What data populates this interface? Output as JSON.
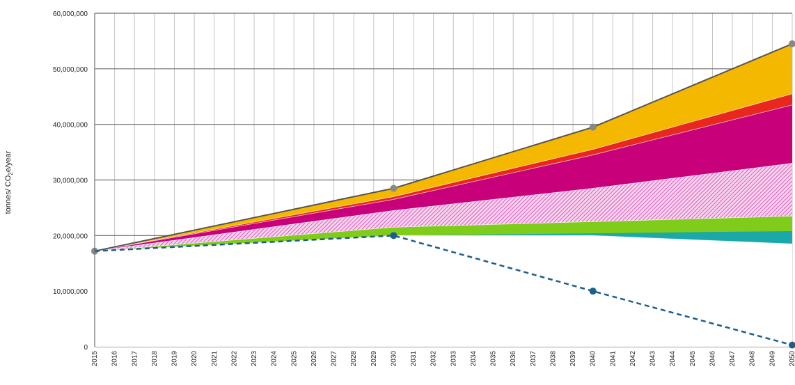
{
  "chart_data": {
    "type": "area",
    "title": "",
    "xlabel": "",
    "ylabel_parts": [
      "tonnes/ CO",
      "2",
      "e/year"
    ],
    "ylim": [
      0,
      60000000
    ],
    "yticks": [
      0,
      10000000,
      20000000,
      30000000,
      40000000,
      50000000,
      60000000
    ],
    "ytick_labels": [
      "0",
      "10,000,000",
      "20,000,000",
      "30,000,000",
      "40,000,000",
      "50,000,000",
      "60,000,000"
    ],
    "x": [
      2015,
      2016,
      2017,
      2018,
      2019,
      2020,
      2021,
      2022,
      2023,
      2024,
      2025,
      2026,
      2027,
      2028,
      2029,
      2030,
      2031,
      2032,
      2033,
      2034,
      2035,
      2036,
      2037,
      2038,
      2039,
      2040,
      2041,
      2042,
      2043,
      2044,
      2045,
      2046,
      2047,
      2048,
      2049,
      2050
    ],
    "grid": true,
    "legend": "none",
    "series": [
      {
        "color": "#1aa8a8",
        "points": [
          [
            2015,
            17200000
          ],
          [
            2030,
            20000000
          ],
          [
            2040,
            20000000
          ],
          [
            2050,
            18500000
          ]
        ]
      },
      {
        "color": "#7fcc1a",
        "points": [
          [
            2015,
            17200000
          ],
          [
            2030,
            21500000
          ],
          [
            2040,
            22500000
          ],
          [
            2050,
            23500000
          ]
        ]
      },
      {
        "color": "#e060c0",
        "pattern": "hatched",
        "points": [
          [
            2015,
            17200000
          ],
          [
            2030,
            24500000
          ],
          [
            2040,
            28500000
          ],
          [
            2050,
            33000000
          ]
        ]
      },
      {
        "color": "#c8007a",
        "points": [
          [
            2015,
            17200000
          ],
          [
            2030,
            26500000
          ],
          [
            2040,
            34500000
          ],
          [
            2050,
            43500000
          ]
        ]
      },
      {
        "color": "#e8271e",
        "points": [
          [
            2015,
            17200000
          ],
          [
            2030,
            27000000
          ],
          [
            2040,
            35500000
          ],
          [
            2050,
            45500000
          ]
        ]
      },
      {
        "color": "#f5b800",
        "points": [
          [
            2015,
            17200000
          ],
          [
            2030,
            28500000
          ],
          [
            2040,
            39500000
          ],
          [
            2050,
            54500000
          ]
        ]
      }
    ],
    "total_line": {
      "color": "#555555",
      "marker_color": "#888888",
      "points": [
        [
          2015,
          17200000
        ],
        [
          2030,
          28500000
        ],
        [
          2040,
          39500000
        ],
        [
          2050,
          54500000
        ]
      ]
    },
    "target_line": {
      "color": "#1d5e8c",
      "style": "dashed",
      "points": [
        [
          2015,
          17200000
        ],
        [
          2030,
          20000000
        ],
        [
          2040,
          10000000
        ],
        [
          2050,
          300000
        ]
      ]
    }
  }
}
